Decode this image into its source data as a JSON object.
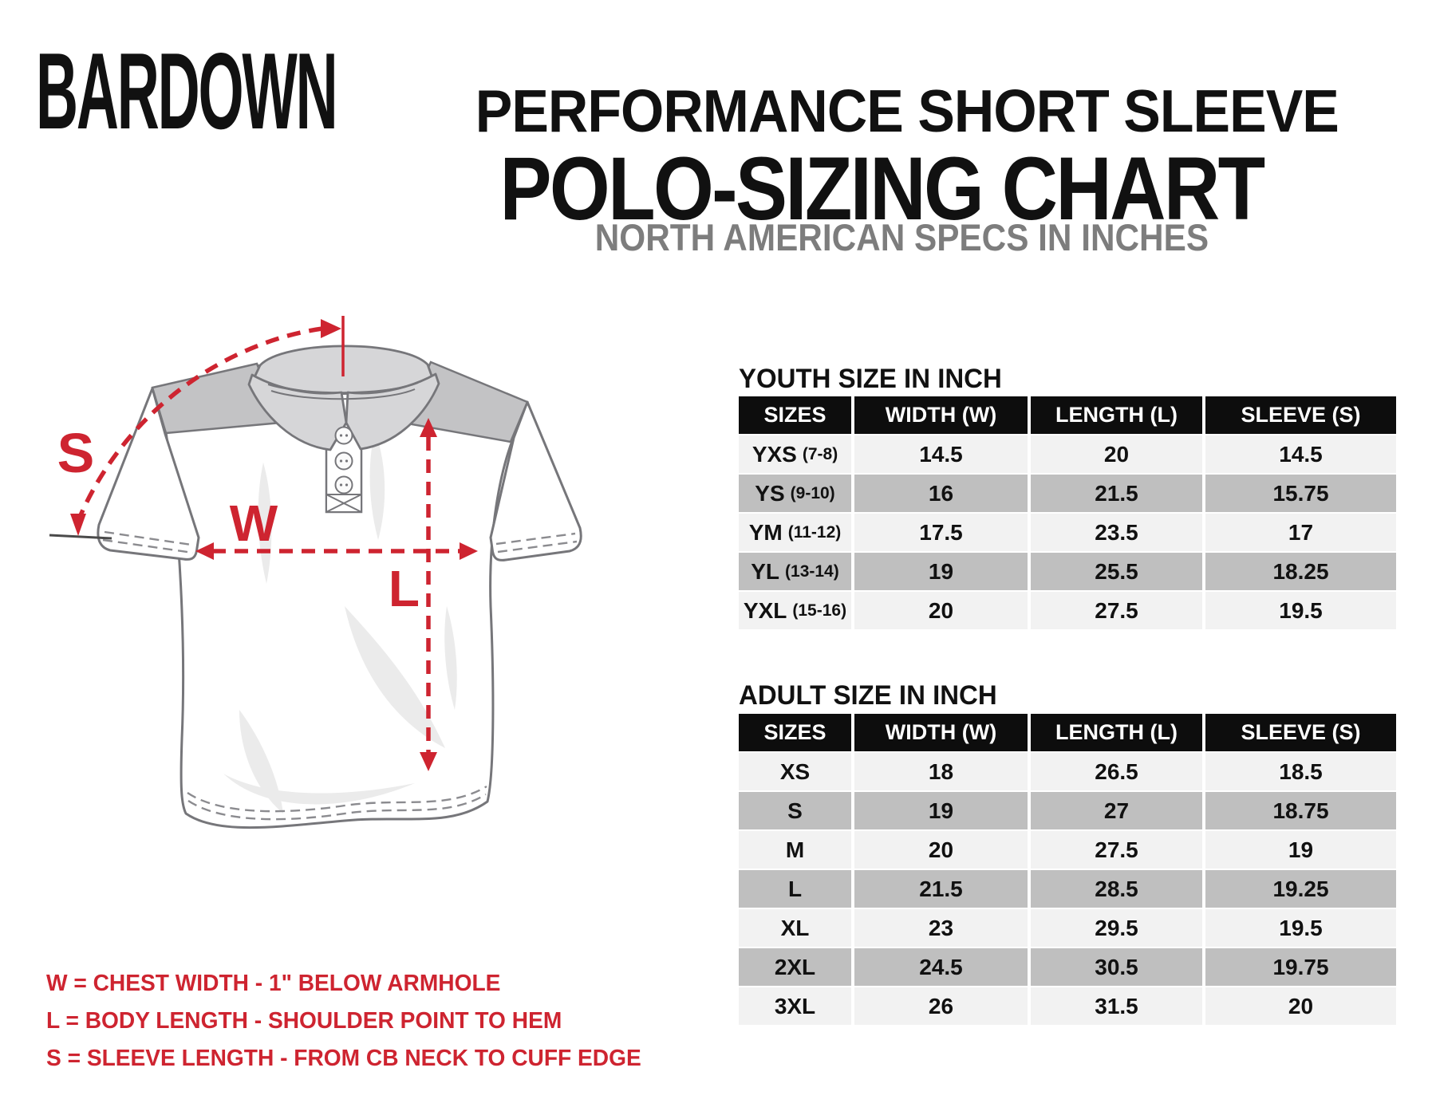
{
  "brand": {
    "logo_text": "BARDOWN"
  },
  "header": {
    "title_line1": "PERFORMANCE SHORT SLEEVE",
    "title_line2": "POLO-SIZING CHART",
    "subtitle": "NORTH AMERICAN SPECS IN INCHES"
  },
  "diagram": {
    "labels": {
      "sleeve": "S",
      "width": "W",
      "length": "L"
    }
  },
  "legend": {
    "lines": [
      "W = CHEST WIDTH - 1\" BELOW ARMHOLE",
      "L = BODY LENGTH - SHOULDER POINT TO HEM",
      "S = SLEEVE LENGTH - FROM CB NECK TO CUFF EDGE"
    ]
  },
  "tables": [
    {
      "id": "youth",
      "title": "YOUTH SIZE IN INCH",
      "headers": [
        "SIZES",
        "WIDTH (W)",
        "LENGTH (L)",
        "SLEEVE (S)"
      ],
      "rows": [
        {
          "size": "YXS",
          "age": "(7-8)",
          "values": [
            "14.5",
            "20",
            "14.5"
          ]
        },
        {
          "size": "YS",
          "age": "(9-10)",
          "values": [
            "16",
            "21.5",
            "15.75"
          ]
        },
        {
          "size": "YM",
          "age": "(11-12)",
          "values": [
            "17.5",
            "23.5",
            "17"
          ]
        },
        {
          "size": "YL",
          "age": "(13-14)",
          "values": [
            "19",
            "25.5",
            "18.25"
          ]
        },
        {
          "size": "YXL",
          "age": "(15-16)",
          "values": [
            "20",
            "27.5",
            "19.5"
          ]
        }
      ]
    },
    {
      "id": "adult",
      "title": "ADULT SIZE IN INCH",
      "headers": [
        "SIZES",
        "WIDTH (W)",
        "LENGTH (L)",
        "SLEEVE (S)"
      ],
      "rows": [
        {
          "size": "XS",
          "age": "",
          "values": [
            "18",
            "26.5",
            "18.5"
          ]
        },
        {
          "size": "S",
          "age": "",
          "values": [
            "19",
            "27",
            "18.75"
          ]
        },
        {
          "size": "M",
          "age": "",
          "values": [
            "20",
            "27.5",
            "19"
          ]
        },
        {
          "size": "L",
          "age": "",
          "values": [
            "21.5",
            "28.5",
            "19.25"
          ]
        },
        {
          "size": "XL",
          "age": "",
          "values": [
            "23",
            "29.5",
            "19.5"
          ]
        },
        {
          "size": "2XL",
          "age": "",
          "values": [
            "24.5",
            "30.5",
            "19.75"
          ]
        },
        {
          "size": "3XL",
          "age": "",
          "values": [
            "26",
            "31.5",
            "20"
          ]
        }
      ]
    }
  ],
  "colors": {
    "accent_red": "#ce2430",
    "table_header_bg": "#0d0d0d",
    "row_light": "#f2f2f2",
    "row_dark": "#bfbfbf",
    "subtitle_gray": "#7d7d7d"
  }
}
